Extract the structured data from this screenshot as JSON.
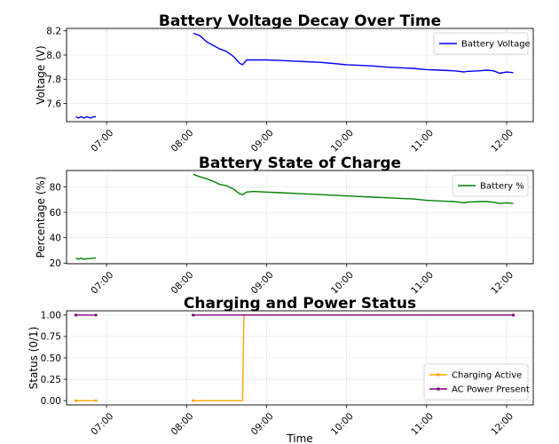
{
  "chart_data": [
    {
      "type": "line",
      "title": "Battery Voltage Decay Over Time",
      "xlabel": "",
      "ylabel": "Voltage (V)",
      "xlim": [
        "06:30",
        "12:20"
      ],
      "ylim": [
        7.45,
        8.22
      ],
      "yticks": [
        "7.6",
        "7.8",
        "8.0",
        "8.2"
      ],
      "xticks": [
        "07:00",
        "08:00",
        "09:00",
        "10:00",
        "11:00",
        "12:00"
      ],
      "grid": true,
      "legend": "top-right",
      "series": [
        {
          "name": "Battery Voltage",
          "color": "#0000ff",
          "segments": [
            [
              [
                "06:37",
                7.49
              ],
              [
                "06:39",
                7.48
              ],
              [
                "06:41",
                7.49
              ],
              [
                "06:43",
                7.48
              ],
              [
                "06:45",
                7.49
              ],
              [
                "06:48",
                7.48
              ],
              [
                "06:50",
                7.49
              ],
              [
                "06:52",
                7.49
              ]
            ],
            [
              [
                "08:05",
                8.18
              ],
              [
                "08:10",
                8.16
              ],
              [
                "08:15",
                8.11
              ],
              [
                "08:20",
                8.08
              ],
              [
                "08:25",
                8.05
              ],
              [
                "08:30",
                8.03
              ],
              [
                "08:35",
                7.99
              ],
              [
                "08:40",
                7.93
              ],
              [
                "08:42",
                7.92
              ],
              [
                "08:45",
                7.96
              ],
              [
                "08:50",
                7.96
              ],
              [
                "09:00",
                7.96
              ],
              [
                "09:10",
                7.955
              ],
              [
                "09:20",
                7.95
              ],
              [
                "09:30",
                7.945
              ],
              [
                "09:40",
                7.94
              ],
              [
                "09:50",
                7.93
              ],
              [
                "10:00",
                7.92
              ],
              [
                "10:10",
                7.915
              ],
              [
                "10:20",
                7.91
              ],
              [
                "10:30",
                7.9
              ],
              [
                "10:40",
                7.895
              ],
              [
                "10:50",
                7.89
              ],
              [
                "11:00",
                7.88
              ],
              [
                "11:10",
                7.875
              ],
              [
                "11:20",
                7.87
              ],
              [
                "11:25",
                7.865
              ],
              [
                "11:28",
                7.86
              ],
              [
                "11:30",
                7.865
              ],
              [
                "11:40",
                7.87
              ],
              [
                "11:45",
                7.875
              ],
              [
                "11:50",
                7.87
              ],
              [
                "11:55",
                7.85
              ],
              [
                "12:00",
                7.86
              ],
              [
                "12:05",
                7.855
              ]
            ]
          ]
        }
      ]
    },
    {
      "type": "line",
      "title": "Battery State of Charge",
      "xlabel": "",
      "ylabel": "Percentage (%)",
      "xlim": [
        "06:30",
        "12:20"
      ],
      "ylim": [
        19.5,
        93
      ],
      "yticks": [
        "20",
        "40",
        "60",
        "80"
      ],
      "xticks": [
        "07:00",
        "08:00",
        "09:00",
        "10:00",
        "11:00",
        "12:00"
      ],
      "grid": true,
      "legend": "top-right",
      "series": [
        {
          "name": "Battery %",
          "color": "#008000",
          "segments": [
            [
              [
                "06:37",
                24
              ],
              [
                "06:39",
                23
              ],
              [
                "06:41",
                24
              ],
              [
                "06:43",
                23
              ],
              [
                "06:45",
                23.5
              ],
              [
                "06:48",
                23.5
              ],
              [
                "06:50",
                24
              ],
              [
                "06:52",
                24
              ]
            ],
            [
              [
                "08:05",
                90
              ],
              [
                "08:10",
                88
              ],
              [
                "08:15",
                86.5
              ],
              [
                "08:20",
                84.5
              ],
              [
                "08:25",
                82
              ],
              [
                "08:30",
                81
              ],
              [
                "08:35",
                78.5
              ],
              [
                "08:40",
                74.5
              ],
              [
                "08:42",
                74
              ],
              [
                "08:45",
                76
              ],
              [
                "08:50",
                76.5
              ],
              [
                "09:00",
                76
              ],
              [
                "09:10",
                75.5
              ],
              [
                "09:20",
                75
              ],
              [
                "09:30",
                74.5
              ],
              [
                "09:40",
                74
              ],
              [
                "09:50",
                73.5
              ],
              [
                "10:00",
                73
              ],
              [
                "10:10",
                72.5
              ],
              [
                "10:20",
                72
              ],
              [
                "10:30",
                71.5
              ],
              [
                "10:40",
                71
              ],
              [
                "10:50",
                70.5
              ],
              [
                "11:00",
                69.5
              ],
              [
                "11:10",
                69
              ],
              [
                "11:20",
                68.5
              ],
              [
                "11:25",
                68
              ],
              [
                "11:28",
                67.5
              ],
              [
                "11:30",
                68
              ],
              [
                "11:40",
                68.5
              ],
              [
                "11:45",
                68.5
              ],
              [
                "11:50",
                68
              ],
              [
                "11:55",
                67
              ],
              [
                "12:00",
                67.5
              ],
              [
                "12:05",
                67
              ]
            ]
          ]
        }
      ]
    },
    {
      "type": "line",
      "title": "Charging and Power Status",
      "xlabel": "Time",
      "ylabel": "Status (0/1)",
      "xlim": [
        "06:30",
        "12:20"
      ],
      "ylim": [
        -0.05,
        1.05
      ],
      "yticks": [
        "0.00",
        "0.25",
        "0.50",
        "0.75",
        "1.00"
      ],
      "xticks": [
        "07:00",
        "08:00",
        "09:00",
        "10:00",
        "11:00",
        "12:00"
      ],
      "grid": true,
      "legend": "bottom-right",
      "series": [
        {
          "name": "Charging Active",
          "color": "#ffa500",
          "marker": "circle",
          "segments": [
            [
              [
                "06:37",
                0
              ],
              [
                "06:52",
                0
              ]
            ],
            [
              [
                "08:05",
                0
              ],
              [
                "08:42",
                0
              ],
              [
                "08:43",
                1
              ],
              [
                "12:05",
                1
              ]
            ]
          ]
        },
        {
          "name": "AC Power Present",
          "color": "#800080",
          "marker": "circle",
          "segments": [
            [
              [
                "06:37",
                1
              ],
              [
                "06:52",
                1
              ]
            ],
            [
              [
                "08:05",
                1
              ],
              [
                "12:05",
                1
              ]
            ]
          ]
        }
      ]
    }
  ]
}
